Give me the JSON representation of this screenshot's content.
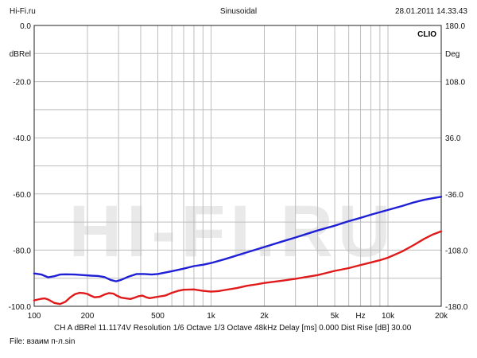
{
  "header": {
    "left": "Hi-Fi.ru",
    "center": "Sinusoidal",
    "right": "28.01.2011 14.33.43"
  },
  "brand": "CLIO",
  "watermark": "HI-FI.RU",
  "footer": {
    "settings": "CH A  dBRel 11.1174V  Resolution 1/6 Octave  1/3 Octave  48kHz  Delay [ms] 0.000  Dist Rise [dB] 30.00",
    "file": "File: взаим п-л.sin"
  },
  "chart_data": {
    "type": "line",
    "x_scale": "log",
    "xlim": [
      100,
      20000
    ],
    "x_ticks": [
      {
        "value": 100,
        "label": "100"
      },
      {
        "value": 200,
        "label": "200"
      },
      {
        "value": 500,
        "label": "500"
      },
      {
        "value": 1000,
        "label": "1k"
      },
      {
        "value": 2000,
        "label": "2k"
      },
      {
        "value": 5000,
        "label": "5k"
      },
      {
        "value": 7000,
        "label": "Hz"
      },
      {
        "value": 10000,
        "label": "10k"
      },
      {
        "value": 20000,
        "label": "20k"
      }
    ],
    "y_left": {
      "label": "dBRel",
      "lim": [
        -100,
        0
      ],
      "ticks": [
        {
          "value": 0,
          "label": "0.0"
        },
        {
          "value": -20,
          "label": "-20.0"
        },
        {
          "value": -40,
          "label": "-40.0"
        },
        {
          "value": -60,
          "label": "-60.0"
        },
        {
          "value": -80,
          "label": "-80.0"
        },
        {
          "value": -100,
          "label": "-100.0"
        }
      ]
    },
    "y_right": {
      "label": "Deg",
      "lim": [
        -180,
        180
      ],
      "ticks": [
        {
          "value": 180,
          "label": "180.0"
        },
        {
          "value": 108,
          "label": "108.0"
        },
        {
          "value": 36,
          "label": "36.0"
        },
        {
          "value": -36,
          "label": "-36.0"
        },
        {
          "value": -108,
          "label": "-108.0"
        },
        {
          "value": -180,
          "label": "-180.0"
        }
      ]
    },
    "grid": true,
    "series": [
      {
        "color": "#1f1fd6",
        "points": [
          [
            100,
            -88.3
          ],
          [
            110,
            -88.7
          ],
          [
            120,
            -89.7
          ],
          [
            130,
            -89.3
          ],
          [
            140,
            -88.7
          ],
          [
            150,
            -88.6
          ],
          [
            170,
            -88.7
          ],
          [
            190,
            -88.9
          ],
          [
            210,
            -89.1
          ],
          [
            230,
            -89.2
          ],
          [
            250,
            -89.6
          ],
          [
            270,
            -90.6
          ],
          [
            290,
            -91.1
          ],
          [
            310,
            -90.6
          ],
          [
            340,
            -89.5
          ],
          [
            380,
            -88.5
          ],
          [
            420,
            -88.5
          ],
          [
            460,
            -88.7
          ],
          [
            500,
            -88.5
          ],
          [
            600,
            -87.5
          ],
          [
            700,
            -86.6
          ],
          [
            800,
            -85.7
          ],
          [
            900,
            -85.2
          ],
          [
            1000,
            -84.6
          ],
          [
            1200,
            -83.2
          ],
          [
            1500,
            -81.3
          ],
          [
            2000,
            -78.9
          ],
          [
            2500,
            -77.0
          ],
          [
            3000,
            -75.5
          ],
          [
            4000,
            -73.0
          ],
          [
            5000,
            -71.3
          ],
          [
            6000,
            -69.7
          ],
          [
            7000,
            -68.5
          ],
          [
            8000,
            -67.4
          ],
          [
            10000,
            -65.7
          ],
          [
            12000,
            -64.3
          ],
          [
            14000,
            -63.0
          ],
          [
            16000,
            -62.1
          ],
          [
            18000,
            -61.5
          ],
          [
            20000,
            -61.0
          ]
        ]
      },
      {
        "color": "#e01a1a",
        "points": [
          [
            100,
            -97.9
          ],
          [
            105,
            -97.6
          ],
          [
            110,
            -97.3
          ],
          [
            115,
            -97.2
          ],
          [
            120,
            -97.6
          ],
          [
            130,
            -98.8
          ],
          [
            140,
            -99.2
          ],
          [
            150,
            -98.4
          ],
          [
            160,
            -96.8
          ],
          [
            170,
            -95.7
          ],
          [
            180,
            -95.2
          ],
          [
            190,
            -95.3
          ],
          [
            200,
            -95.6
          ],
          [
            210,
            -96.3
          ],
          [
            220,
            -96.8
          ],
          [
            235,
            -96.6
          ],
          [
            250,
            -95.8
          ],
          [
            265,
            -95.3
          ],
          [
            280,
            -95.5
          ],
          [
            295,
            -96.3
          ],
          [
            310,
            -96.9
          ],
          [
            330,
            -97.2
          ],
          [
            350,
            -97.4
          ],
          [
            370,
            -96.9
          ],
          [
            390,
            -96.4
          ],
          [
            410,
            -96.2
          ],
          [
            430,
            -96.8
          ],
          [
            450,
            -97.1
          ],
          [
            470,
            -96.9
          ],
          [
            500,
            -96.6
          ],
          [
            550,
            -96.2
          ],
          [
            600,
            -95.2
          ],
          [
            650,
            -94.5
          ],
          [
            700,
            -94.1
          ],
          [
            800,
            -94.0
          ],
          [
            900,
            -94.5
          ],
          [
            1000,
            -94.8
          ],
          [
            1100,
            -94.6
          ],
          [
            1200,
            -94.2
          ],
          [
            1400,
            -93.5
          ],
          [
            1600,
            -92.7
          ],
          [
            1800,
            -92.2
          ],
          [
            2000,
            -91.7
          ],
          [
            2500,
            -90.9
          ],
          [
            3000,
            -90.2
          ],
          [
            3500,
            -89.5
          ],
          [
            4000,
            -88.9
          ],
          [
            4500,
            -88.1
          ],
          [
            5000,
            -87.4
          ],
          [
            6000,
            -86.4
          ],
          [
            7000,
            -85.3
          ],
          [
            8000,
            -84.4
          ],
          [
            9000,
            -83.6
          ],
          [
            10000,
            -82.7
          ],
          [
            12000,
            -80.5
          ],
          [
            14000,
            -78.2
          ],
          [
            16000,
            -76.0
          ],
          [
            18000,
            -74.4
          ],
          [
            20000,
            -73.3
          ]
        ]
      }
    ]
  }
}
